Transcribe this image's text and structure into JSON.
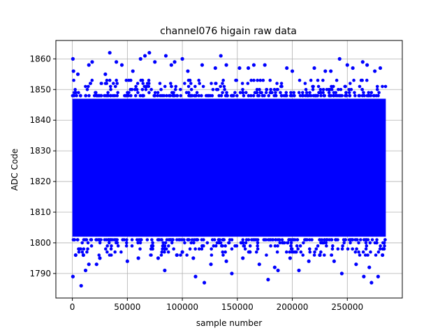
{
  "chart_data": {
    "type": "scatter",
    "title": "channel076 higain raw data",
    "xlabel": "sample number",
    "ylabel": "ADC Code",
    "xlim": [
      -15000,
      300000
    ],
    "ylim": [
      1782,
      1866
    ],
    "grid": true,
    "marker_color": "#0000ff",
    "x_ticks": [
      0,
      50000,
      100000,
      150000,
      200000,
      250000
    ],
    "y_ticks": [
      1790,
      1800,
      1810,
      1820,
      1830,
      1840,
      1850,
      1860
    ],
    "x_tick_labels": [
      "0",
      "50000",
      "100000",
      "150000",
      "200000",
      "250000"
    ],
    "y_tick_labels": [
      "1790",
      "1800",
      "1810",
      "1820",
      "1830",
      "1840",
      "1850",
      "1860"
    ],
    "sample_range": [
      0,
      285000
    ],
    "dense_band": [
      1802,
      1847
    ],
    "series": [
      {
        "points": [
          [
            500,
            1860
          ],
          [
            500,
            1789
          ],
          [
            8000,
            1786
          ],
          [
            34000,
            1862
          ],
          [
            70000,
            1862
          ],
          [
            66000,
            1861
          ],
          [
            85000,
            1861
          ],
          [
            100000,
            1860
          ],
          [
            135000,
            1861
          ],
          [
            112000,
            1789
          ],
          [
            120000,
            1787
          ],
          [
            178000,
            1788
          ],
          [
            243000,
            1860
          ],
          [
            245000,
            1790
          ],
          [
            264000,
            1859
          ],
          [
            265000,
            1789
          ],
          [
            278000,
            1789
          ],
          [
            12000,
            1791
          ],
          [
            15000,
            1793
          ],
          [
            22000,
            1793
          ],
          [
            84000,
            1791
          ],
          [
            145000,
            1790
          ],
          [
            187000,
            1791
          ],
          [
            206000,
            1791
          ],
          [
            270000,
            1792
          ],
          [
            272000,
            1787
          ],
          [
            1000,
            1856
          ],
          [
            5000,
            1855
          ],
          [
            15000,
            1858
          ],
          [
            18000,
            1859
          ],
          [
            40000,
            1859
          ],
          [
            45000,
            1858
          ],
          [
            90000,
            1858
          ],
          [
            93000,
            1859
          ],
          [
            118000,
            1858
          ],
          [
            152000,
            1857
          ],
          [
            160000,
            1857
          ],
          [
            165000,
            1858
          ],
          [
            175000,
            1858
          ],
          [
            195000,
            1857
          ],
          [
            220000,
            1857
          ],
          [
            235000,
            1856
          ],
          [
            255000,
            1857
          ],
          [
            268000,
            1858
          ],
          [
            275000,
            1856
          ],
          [
            280000,
            1857
          ],
          [
            30000,
            1855
          ],
          [
            55000,
            1856
          ],
          [
            62000,
            1860
          ],
          [
            75000,
            1859
          ],
          [
            105000,
            1856
          ],
          [
            130000,
            1857
          ],
          [
            140000,
            1858
          ],
          [
            200000,
            1856
          ],
          [
            230000,
            1856
          ],
          [
            250000,
            1858
          ],
          [
            10000,
            1796
          ],
          [
            25000,
            1795
          ],
          [
            50000,
            1794
          ],
          [
            78000,
            1795
          ],
          [
            95000,
            1796
          ],
          [
            110000,
            1795
          ],
          [
            126000,
            1793
          ],
          [
            140000,
            1794
          ],
          [
            155000,
            1795
          ],
          [
            170000,
            1793
          ],
          [
            184000,
            1792
          ],
          [
            198000,
            1795
          ],
          [
            215000,
            1794
          ],
          [
            225000,
            1796
          ],
          [
            238000,
            1794
          ],
          [
            258000,
            1793
          ],
          [
            282000,
            1796
          ],
          [
            3000,
            1796
          ],
          [
            60000,
            1795
          ],
          [
            100000,
            1797
          ]
        ]
      }
    ]
  }
}
